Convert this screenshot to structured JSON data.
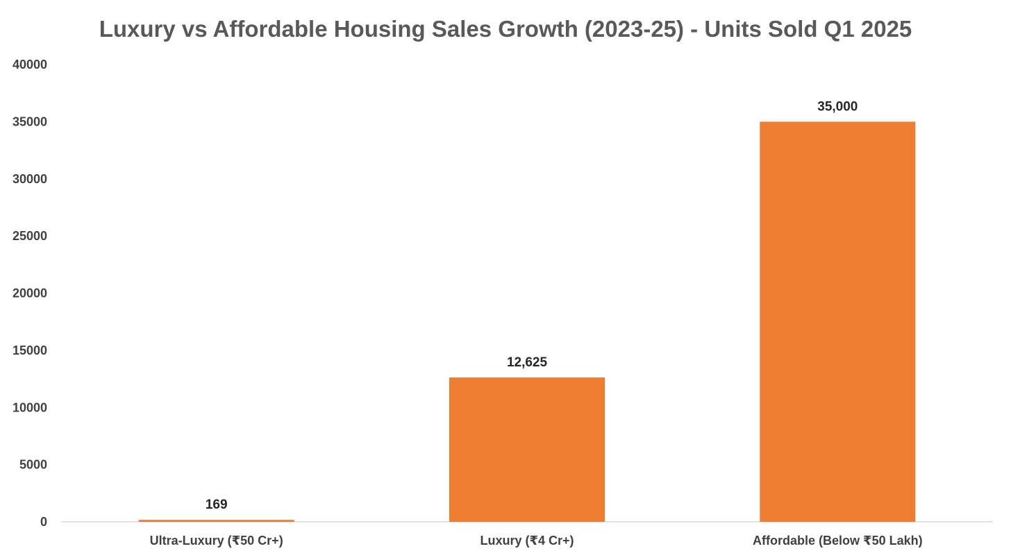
{
  "chart_data": {
    "type": "bar",
    "title": "Luxury vs Affordable Housing Sales Growth (2023-25) - Units Sold Q1 2025",
    "categories": [
      "Ultra-Luxury (₹50 Cr+)",
      "Luxury (₹4 Cr+)",
      "Affordable (Below ₹50 Lakh)"
    ],
    "values": [
      169,
      12625,
      35000
    ],
    "data_labels": [
      "169",
      "12,625",
      "35,000"
    ],
    "xlabel": "",
    "ylabel": "",
    "ylim": [
      0,
      40000
    ],
    "yticks": [
      0,
      5000,
      10000,
      15000,
      20000,
      25000,
      30000,
      35000,
      40000
    ],
    "ytick_labels": [
      "0",
      "5000",
      "10000",
      "15000",
      "20000",
      "25000",
      "30000",
      "35000",
      "40000"
    ],
    "grid": false,
    "legend": "none",
    "bar_color": "#ED7D31",
    "axis_color": "#D9D9D9"
  }
}
